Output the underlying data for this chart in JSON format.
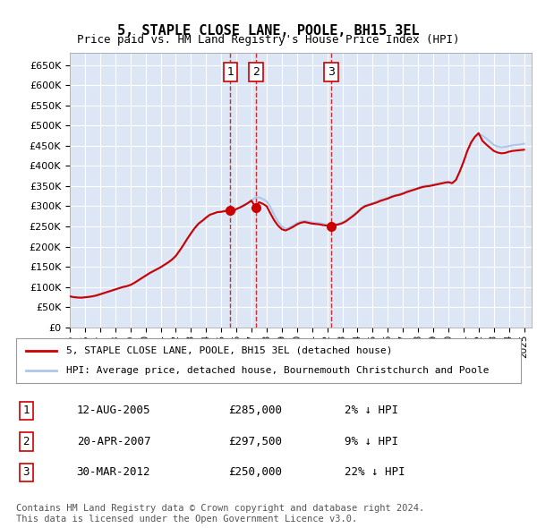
{
  "title": "5, STAPLE CLOSE LANE, POOLE, BH15 3EL",
  "subtitle": "Price paid vs. HM Land Registry's House Price Index (HPI)",
  "ylabel_ticks": [
    "£0",
    "£50K",
    "£100K",
    "£150K",
    "£200K",
    "£250K",
    "£300K",
    "£350K",
    "£400K",
    "£450K",
    "£500K",
    "£550K",
    "£600K",
    "£650K"
  ],
  "ylim": [
    0,
    680000
  ],
  "yticks": [
    0,
    50000,
    100000,
    150000,
    200000,
    250000,
    300000,
    350000,
    400000,
    450000,
    500000,
    550000,
    600000,
    650000
  ],
  "xlim_start": 1995.0,
  "xlim_end": 2025.5,
  "bg_color": "#dce6f5",
  "grid_color": "#ffffff",
  "hpi_color": "#aec6e8",
  "property_color": "#cc0000",
  "sale_marker_color": "#cc0000",
  "vline_color": "#cc0000",
  "legend_property": "5, STAPLE CLOSE LANE, POOLE, BH15 3EL (detached house)",
  "legend_hpi": "HPI: Average price, detached house, Bournemouth Christchurch and Poole",
  "sales": [
    {
      "num": 1,
      "date": "12-AUG-2005",
      "price": 285000,
      "pct": "2%",
      "dir": "↓",
      "year": 2005.6
    },
    {
      "num": 2,
      "date": "20-APR-2007",
      "price": 297500,
      "pct": "9%",
      "dir": "↓",
      "year": 2007.3
    },
    {
      "num": 3,
      "date": "30-MAR-2012",
      "price": 250000,
      "pct": "22%",
      "dir": "↓",
      "year": 2012.25
    }
  ],
  "footnote1": "Contains HM Land Registry data © Crown copyright and database right 2024.",
  "footnote2": "This data is licensed under the Open Government Licence v3.0.",
  "hpi_data_x": [
    1995.0,
    1995.25,
    1995.5,
    1995.75,
    1996.0,
    1996.25,
    1996.5,
    1996.75,
    1997.0,
    1997.25,
    1997.5,
    1997.75,
    1998.0,
    1998.25,
    1998.5,
    1998.75,
    1999.0,
    1999.25,
    1999.5,
    1999.75,
    2000.0,
    2000.25,
    2000.5,
    2000.75,
    2001.0,
    2001.25,
    2001.5,
    2001.75,
    2002.0,
    2002.25,
    2002.5,
    2002.75,
    2003.0,
    2003.25,
    2003.5,
    2003.75,
    2004.0,
    2004.25,
    2004.5,
    2004.75,
    2005.0,
    2005.25,
    2005.5,
    2005.75,
    2006.0,
    2006.25,
    2006.5,
    2006.75,
    2007.0,
    2007.25,
    2007.5,
    2007.75,
    2008.0,
    2008.25,
    2008.5,
    2008.75,
    2009.0,
    2009.25,
    2009.5,
    2009.75,
    2010.0,
    2010.25,
    2010.5,
    2010.75,
    2011.0,
    2011.25,
    2011.5,
    2011.75,
    2012.0,
    2012.25,
    2012.5,
    2012.75,
    2013.0,
    2013.25,
    2013.5,
    2013.75,
    2014.0,
    2014.25,
    2014.5,
    2014.75,
    2015.0,
    2015.25,
    2015.5,
    2015.75,
    2016.0,
    2016.25,
    2016.5,
    2016.75,
    2017.0,
    2017.25,
    2017.5,
    2017.75,
    2018.0,
    2018.25,
    2018.5,
    2018.75,
    2019.0,
    2019.25,
    2019.5,
    2019.75,
    2020.0,
    2020.25,
    2020.5,
    2020.75,
    2021.0,
    2021.25,
    2021.5,
    2021.75,
    2022.0,
    2022.25,
    2022.5,
    2022.75,
    2023.0,
    2023.25,
    2023.5,
    2023.75,
    2024.0,
    2024.25,
    2024.5,
    2024.75,
    2025.0
  ],
  "hpi_data_y": [
    75000,
    74000,
    73500,
    73000,
    74000,
    75000,
    76000,
    78000,
    81000,
    84000,
    87000,
    90000,
    93000,
    96000,
    99000,
    101000,
    104000,
    109000,
    115000,
    121000,
    127000,
    133000,
    138000,
    143000,
    148000,
    154000,
    160000,
    167000,
    176000,
    189000,
    203000,
    218000,
    232000,
    245000,
    256000,
    263000,
    271000,
    278000,
    282000,
    285000,
    287000,
    289000,
    291000,
    292000,
    294000,
    298000,
    303000,
    308000,
    315000,
    321000,
    322000,
    318000,
    312000,
    298000,
    278000,
    262000,
    250000,
    245000,
    247000,
    252000,
    258000,
    262000,
    264000,
    262000,
    260000,
    259000,
    258000,
    256000,
    254000,
    254000,
    255000,
    257000,
    260000,
    265000,
    272000,
    279000,
    287000,
    296000,
    302000,
    305000,
    308000,
    311000,
    315000,
    318000,
    321000,
    325000,
    328000,
    330000,
    333000,
    337000,
    340000,
    343000,
    346000,
    349000,
    351000,
    352000,
    354000,
    356000,
    358000,
    360000,
    361000,
    358000,
    365000,
    385000,
    408000,
    435000,
    455000,
    470000,
    478000,
    475000,
    468000,
    460000,
    452000,
    448000,
    446000,
    447000,
    449000,
    451000,
    452000,
    453000,
    455000
  ],
  "property_data_x": [
    1995.0,
    1995.25,
    1995.5,
    1995.75,
    1996.0,
    1996.25,
    1996.5,
    1996.75,
    1997.0,
    1997.25,
    1997.5,
    1997.75,
    1998.0,
    1998.25,
    1998.5,
    1998.75,
    1999.0,
    1999.25,
    1999.5,
    1999.75,
    2000.0,
    2000.25,
    2000.5,
    2000.75,
    2001.0,
    2001.25,
    2001.5,
    2001.75,
    2002.0,
    2002.25,
    2002.5,
    2002.75,
    2003.0,
    2003.25,
    2003.5,
    2003.75,
    2004.0,
    2004.25,
    2004.5,
    2004.75,
    2005.0,
    2005.25,
    2005.5,
    2005.75,
    2006.0,
    2006.25,
    2006.5,
    2006.75,
    2007.0,
    2007.25,
    2007.5,
    2007.75,
    2008.0,
    2008.25,
    2008.5,
    2008.75,
    2009.0,
    2009.25,
    2009.5,
    2009.75,
    2010.0,
    2010.25,
    2010.5,
    2010.75,
    2011.0,
    2011.25,
    2011.5,
    2011.75,
    2012.0,
    2012.25,
    2012.5,
    2012.75,
    2013.0,
    2013.25,
    2013.5,
    2013.75,
    2014.0,
    2014.25,
    2014.5,
    2014.75,
    2015.0,
    2015.25,
    2015.5,
    2015.75,
    2016.0,
    2016.25,
    2016.5,
    2016.75,
    2017.0,
    2017.25,
    2017.5,
    2017.75,
    2018.0,
    2018.25,
    2018.5,
    2018.75,
    2019.0,
    2019.25,
    2019.5,
    2019.75,
    2020.0,
    2020.25,
    2020.5,
    2020.75,
    2021.0,
    2021.25,
    2021.5,
    2021.75,
    2022.0,
    2022.25,
    2022.5,
    2022.75,
    2023.0,
    2023.25,
    2023.5,
    2023.75,
    2024.0,
    2024.25,
    2024.5,
    2024.75,
    2025.0
  ],
  "property_data_y": [
    77000,
    75000,
    74000,
    73500,
    74500,
    75500,
    77000,
    79000,
    82000,
    85000,
    88000,
    91000,
    94000,
    97000,
    100000,
    102000,
    105000,
    110000,
    116000,
    122000,
    128000,
    134000,
    139000,
    144000,
    149000,
    155000,
    161000,
    168000,
    177000,
    190000,
    204000,
    219000,
    233000,
    246000,
    257000,
    264000,
    272000,
    279000,
    282000,
    285500,
    286000,
    288000,
    290500,
    285000,
    293000,
    297000,
    302000,
    307500,
    314000,
    297500,
    310000,
    306000,
    300000,
    282000,
    265000,
    252000,
    243000,
    240000,
    244000,
    249000,
    255000,
    259000,
    261000,
    259000,
    257000,
    256000,
    255000,
    253000,
    252000,
    250000,
    253000,
    255000,
    258000,
    263000,
    270000,
    277000,
    285000,
    294000,
    300000,
    303000,
    306000,
    309000,
    313000,
    316000,
    319000,
    323000,
    326000,
    328000,
    331000,
    335000,
    338000,
    341000,
    344000,
    347000,
    349000,
    350000,
    352000,
    354000,
    356000,
    358000,
    359500,
    357000,
    365000,
    386000,
    410000,
    437000,
    458000,
    472000,
    481000,
    462000,
    453000,
    445000,
    437000,
    433000,
    431000,
    432000,
    435000,
    437000,
    438000,
    439000,
    440000
  ]
}
